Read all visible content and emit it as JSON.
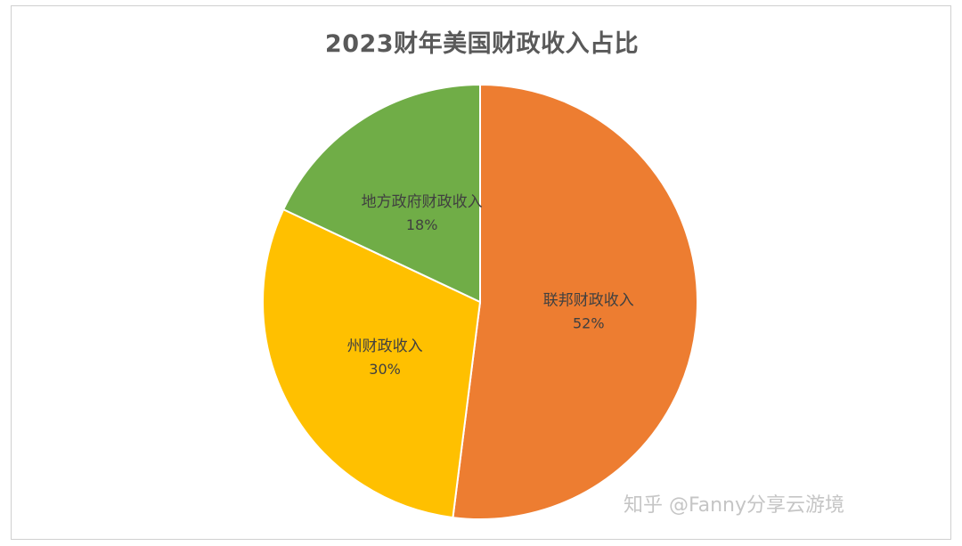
{
  "chart_data": {
    "type": "pie",
    "title": "2023财年美国财政收入占比",
    "categories": [
      "联邦财政收入",
      "州财政收入",
      "地方政府财政收入"
    ],
    "values": [
      52,
      30,
      18
    ],
    "labels": [
      "52%",
      "30%",
      "18%"
    ],
    "colors": [
      "#ED7D31",
      "#FFC000",
      "#70AD47"
    ],
    "start_angle_deg": 0,
    "direction": "clockwise",
    "legend": "none"
  },
  "watermark": {
    "text": "知乎 @Fanny分享云游境"
  }
}
